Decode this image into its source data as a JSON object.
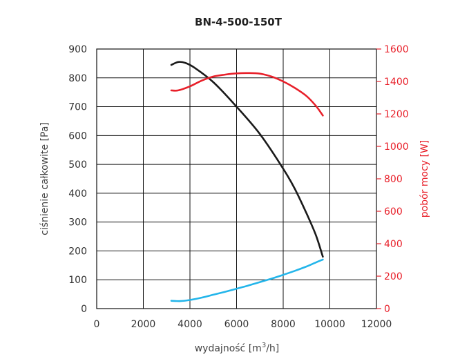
{
  "chart_data": {
    "type": "line",
    "title": "BN-4-500-150T",
    "xlabel_main": "wydajność [m",
    "xlabel_sup": "3",
    "xlabel_end": "/h]",
    "ylabel": "ciśnienie całkowite [Pa]",
    "y2label": "pobór mocy [W]",
    "xlim": [
      0,
      12000
    ],
    "ylim": [
      0,
      900
    ],
    "y2lim": [
      0,
      1600
    ],
    "x_ticks": [
      "0",
      "2000",
      "4000",
      "6000",
      "8000",
      "10000",
      "12000"
    ],
    "y_ticks": [
      "0",
      "100",
      "200",
      "300",
      "400",
      "500",
      "600",
      "700",
      "800",
      "900"
    ],
    "y2_ticks": [
      "0",
      "200",
      "400",
      "600",
      "800",
      "1000",
      "1200",
      "1400",
      "1600"
    ],
    "grid": true,
    "series": [
      {
        "axis": "left",
        "color": "#1a1a1a",
        "points": [
          [
            3200,
            845
          ],
          [
            3500,
            855
          ],
          [
            3800,
            852
          ],
          [
            4200,
            835
          ],
          [
            5000,
            785
          ],
          [
            6000,
            700
          ],
          [
            7000,
            605
          ],
          [
            8000,
            485
          ],
          [
            8500,
            415
          ],
          [
            9000,
            330
          ],
          [
            9400,
            255
          ],
          [
            9700,
            180
          ]
        ]
      },
      {
        "axis": "right",
        "color": "#e8202a",
        "points": [
          [
            3200,
            1345
          ],
          [
            3500,
            1345
          ],
          [
            4000,
            1370
          ],
          [
            4500,
            1405
          ],
          [
            5000,
            1430
          ],
          [
            5500,
            1442
          ],
          [
            6000,
            1450
          ],
          [
            6500,
            1452
          ],
          [
            7000,
            1448
          ],
          [
            7500,
            1430
          ],
          [
            8000,
            1400
          ],
          [
            8500,
            1360
          ],
          [
            9000,
            1310
          ],
          [
            9400,
            1250
          ],
          [
            9700,
            1190
          ]
        ]
      },
      {
        "axis": "left",
        "color": "#23b5ea",
        "points": [
          [
            3200,
            27
          ],
          [
            3600,
            26
          ],
          [
            4000,
            30
          ],
          [
            4500,
            38
          ],
          [
            5000,
            48
          ],
          [
            5500,
            58
          ],
          [
            6000,
            69
          ],
          [
            6500,
            80
          ],
          [
            7000,
            92
          ],
          [
            7500,
            104
          ],
          [
            8000,
            117
          ],
          [
            8500,
            131
          ],
          [
            9000,
            146
          ],
          [
            9400,
            160
          ],
          [
            9700,
            170
          ]
        ]
      }
    ]
  }
}
